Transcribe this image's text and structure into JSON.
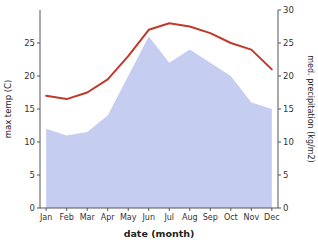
{
  "chart_data": {
    "type": "line",
    "categories": [
      "Jan",
      "Feb",
      "Mar",
      "Apr",
      "May",
      "Jun",
      "Jul",
      "Aug",
      "Sep",
      "Oct",
      "Nov",
      "Dec"
    ],
    "series": [
      {
        "type": "area",
        "color": "#c5cdf0",
        "values": [
          12,
          11,
          11.5,
          14,
          20,
          26,
          22,
          24,
          22,
          20,
          16,
          15
        ]
      },
      {
        "type": "line",
        "color": "#c0392b",
        "axis": "y2",
        "values": [
          17,
          16.5,
          17.5,
          19.5,
          23,
          27,
          28,
          27.5,
          26.5,
          25,
          24,
          21
        ]
      }
    ],
    "xlabel": "date (month)",
    "ylabel": "max temp (C)",
    "y2label": "med. precipitation (kg/m2)",
    "ylim": [
      0,
      30
    ],
    "yticks": [
      0,
      5,
      10,
      15,
      20,
      25
    ],
    "y2lim": [
      0,
      30
    ],
    "y2ticks": [
      0,
      5,
      10,
      15,
      20,
      25,
      30
    ],
    "grid": false
  }
}
